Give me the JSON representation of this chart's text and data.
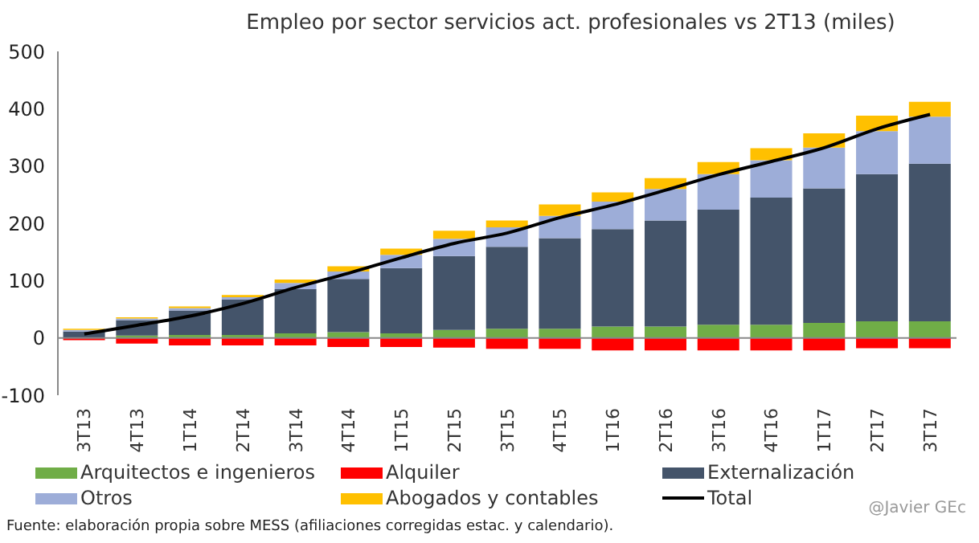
{
  "chart_data": {
    "type": "bar",
    "title": "Empleo por sector servicios act. profesionales vs 2T13 (miles)",
    "categories": [
      "3T13",
      "4T13",
      "1T14",
      "2T14",
      "3T14",
      "4T14",
      "1T15",
      "2T15",
      "3T15",
      "4T15",
      "1T16",
      "2T16",
      "3T16",
      "4T16",
      "1T17",
      "2T17",
      "3T17"
    ],
    "stacked": true,
    "series": [
      {
        "name": "Arquitectos e ingenieros",
        "color": "#70ad47",
        "values": [
          1,
          4,
          5,
          5,
          8,
          10,
          8,
          14,
          16,
          16,
          20,
          20,
          23,
          23,
          26,
          29,
          29
        ]
      },
      {
        "name": "Alquiler",
        "color": "#ff0000",
        "values": [
          -4,
          -10,
          -13,
          -13,
          -13,
          -16,
          -16,
          -17,
          -19,
          -19,
          -22,
          -22,
          -22,
          -22,
          -22,
          -18,
          -18
        ]
      },
      {
        "name": "Externalización",
        "color": "#44546a",
        "values": [
          10,
          27,
          43,
          62,
          77,
          93,
          114,
          129,
          143,
          158,
          170,
          185,
          201,
          222,
          235,
          257,
          275
        ]
      },
      {
        "name": "Otros",
        "color": "#9dadd8",
        "values": [
          3,
          3,
          4,
          4,
          11,
          13,
          23,
          30,
          34,
          39,
          48,
          55,
          62,
          65,
          71,
          75,
          82
        ]
      },
      {
        "name": "Abogados y contables",
        "color": "#ffc000",
        "values": [
          2,
          2,
          3,
          4,
          6,
          9,
          11,
          14,
          12,
          20,
          16,
          19,
          21,
          21,
          25,
          27,
          26
        ]
      },
      {
        "name": "Total",
        "type": "line",
        "color": "#000000",
        "values": [
          7,
          22,
          38,
          60,
          88,
          113,
          140,
          165,
          183,
          210,
          232,
          258,
          285,
          308,
          332,
          365,
          390
        ]
      }
    ],
    "ylim": [
      -100,
      500
    ],
    "yticks": [
      -100,
      0,
      100,
      200,
      300,
      400,
      500
    ],
    "ref_lines": [
      {
        "axis": "y",
        "value": 0,
        "color": "#888888"
      }
    ],
    "legend": "bottom",
    "annotations": [
      "Fuente: elaboración propia sobre MESS (afiliaciones corregidas estac. y calendario).",
      "@Javier GEc"
    ]
  }
}
